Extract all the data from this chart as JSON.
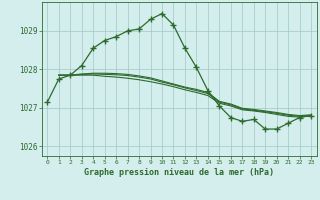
{
  "hours": [
    0,
    1,
    2,
    3,
    4,
    5,
    6,
    7,
    8,
    9,
    10,
    11,
    12,
    13,
    14,
    15,
    16,
    17,
    18,
    19,
    20,
    21,
    22,
    23
  ],
  "main_line": [
    1027.15,
    1027.75,
    1027.85,
    1028.1,
    1028.55,
    1028.75,
    1028.85,
    1029.0,
    1029.05,
    1029.3,
    1029.45,
    1029.15,
    1028.55,
    1028.05,
    1027.45,
    1027.05,
    1026.75,
    1026.65,
    1026.7,
    1026.45,
    1026.45,
    1026.6,
    1026.75,
    1026.8
  ],
  "line2": [
    1027.75,
    1027.85,
    1027.85,
    1027.85,
    1027.85,
    1027.82,
    1027.8,
    1027.77,
    1027.73,
    1027.68,
    1027.62,
    1027.55,
    1027.47,
    1027.4,
    1027.32,
    1027.12,
    1027.05,
    1026.95,
    1026.92,
    1026.88,
    1026.83,
    1026.78,
    1026.76,
    1026.8
  ],
  "line3": [
    1027.75,
    1027.85,
    1027.85,
    1027.87,
    1027.88,
    1027.87,
    1027.86,
    1027.84,
    1027.8,
    1027.75,
    1027.67,
    1027.6,
    1027.52,
    1027.45,
    1027.37,
    1027.15,
    1027.08,
    1026.97,
    1026.94,
    1026.9,
    1026.86,
    1026.81,
    1026.78,
    1026.8
  ],
  "line4": [
    1027.75,
    1027.85,
    1027.85,
    1027.88,
    1027.9,
    1027.9,
    1027.89,
    1027.87,
    1027.83,
    1027.78,
    1027.7,
    1027.62,
    1027.54,
    1027.48,
    1027.4,
    1027.17,
    1027.1,
    1026.99,
    1026.96,
    1026.92,
    1026.88,
    1026.83,
    1026.8,
    1026.82
  ],
  "line_color": "#2d6a2d",
  "bg_color": "#d4eeed",
  "grid_color": "#9ec8c4",
  "xlabel": "Graphe pression niveau de la mer (hPa)",
  "ylim": [
    1025.75,
    1029.75
  ],
  "yticks": [
    1026,
    1027,
    1028,
    1029
  ],
  "xticks": [
    0,
    1,
    2,
    3,
    4,
    5,
    6,
    7,
    8,
    9,
    10,
    11,
    12,
    13,
    14,
    15,
    16,
    17,
    18,
    19,
    20,
    21,
    22,
    23
  ]
}
